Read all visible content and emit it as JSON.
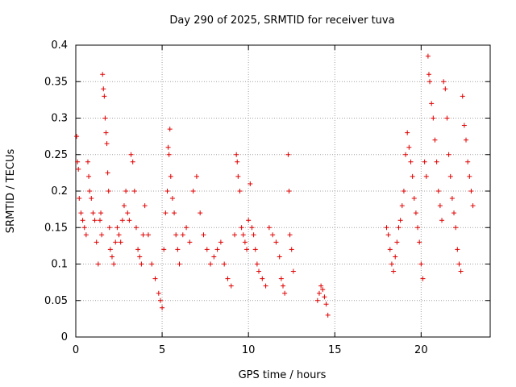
{
  "chart_data": {
    "type": "scatter",
    "title": "Day 290 of 2025, SRMTID for receiver tuva",
    "xlabel": "GPS time / hours",
    "ylabel": "SRMTID / TECUs",
    "xlim": [
      0,
      24
    ],
    "ylim": [
      0,
      0.4
    ],
    "x_ticks": [
      0,
      5,
      10,
      15,
      20
    ],
    "x_tick_labels": [
      "0",
      "5",
      "10",
      "15",
      "20"
    ],
    "y_ticks": [
      0,
      0.05,
      0.1,
      0.15,
      0.2,
      0.25,
      0.3,
      0.35,
      0.4
    ],
    "y_tick_labels": [
      "0",
      "0.05",
      "0.1",
      "0.15",
      "0.2",
      "0.25",
      "0.3",
      "0.35",
      "0.4"
    ],
    "grid": true,
    "marker": "+",
    "series_color": "#e00000",
    "series": [
      {
        "name": "SRMTID",
        "points": [
          [
            0.05,
            0.275
          ],
          [
            0.1,
            0.24
          ],
          [
            0.15,
            0.23
          ],
          [
            0.2,
            0.19
          ],
          [
            0.3,
            0.17
          ],
          [
            0.4,
            0.16
          ],
          [
            0.5,
            0.15
          ],
          [
            0.6,
            0.14
          ],
          [
            0.7,
            0.24
          ],
          [
            0.75,
            0.22
          ],
          [
            0.8,
            0.2
          ],
          [
            0.9,
            0.19
          ],
          [
            1.0,
            0.17
          ],
          [
            1.1,
            0.16
          ],
          [
            1.2,
            0.13
          ],
          [
            1.3,
            0.1
          ],
          [
            1.4,
            0.16
          ],
          [
            1.45,
            0.17
          ],
          [
            1.5,
            0.14
          ],
          [
            1.55,
            0.36
          ],
          [
            1.6,
            0.34
          ],
          [
            1.65,
            0.33
          ],
          [
            1.7,
            0.3
          ],
          [
            1.75,
            0.28
          ],
          [
            1.8,
            0.265
          ],
          [
            1.85,
            0.225
          ],
          [
            1.9,
            0.2
          ],
          [
            1.95,
            0.15
          ],
          [
            2.0,
            0.12
          ],
          [
            2.1,
            0.11
          ],
          [
            2.2,
            0.1
          ],
          [
            2.3,
            0.13
          ],
          [
            2.4,
            0.15
          ],
          [
            2.5,
            0.14
          ],
          [
            2.6,
            0.13
          ],
          [
            2.7,
            0.16
          ],
          [
            2.8,
            0.18
          ],
          [
            2.9,
            0.2
          ],
          [
            3.0,
            0.17
          ],
          [
            3.1,
            0.16
          ],
          [
            3.2,
            0.25
          ],
          [
            3.3,
            0.24
          ],
          [
            3.4,
            0.2
          ],
          [
            3.5,
            0.15
          ],
          [
            3.6,
            0.12
          ],
          [
            3.7,
            0.11
          ],
          [
            3.8,
            0.1
          ],
          [
            3.9,
            0.14
          ],
          [
            4.0,
            0.18
          ],
          [
            4.2,
            0.14
          ],
          [
            4.4,
            0.1
          ],
          [
            4.6,
            0.08
          ],
          [
            4.8,
            0.06
          ],
          [
            4.9,
            0.05
          ],
          [
            5.0,
            0.04
          ],
          [
            5.1,
            0.12
          ],
          [
            5.2,
            0.17
          ],
          [
            5.3,
            0.2
          ],
          [
            5.35,
            0.26
          ],
          [
            5.4,
            0.25
          ],
          [
            5.45,
            0.285
          ],
          [
            5.5,
            0.22
          ],
          [
            5.6,
            0.19
          ],
          [
            5.7,
            0.17
          ],
          [
            5.8,
            0.14
          ],
          [
            5.9,
            0.12
          ],
          [
            6.0,
            0.1
          ],
          [
            6.2,
            0.14
          ],
          [
            6.4,
            0.15
          ],
          [
            6.6,
            0.13
          ],
          [
            6.8,
            0.2
          ],
          [
            7.0,
            0.22
          ],
          [
            7.2,
            0.17
          ],
          [
            7.4,
            0.14
          ],
          [
            7.6,
            0.12
          ],
          [
            7.8,
            0.1
          ],
          [
            8.0,
            0.11
          ],
          [
            8.2,
            0.12
          ],
          [
            8.4,
            0.13
          ],
          [
            8.6,
            0.1
          ],
          [
            8.8,
            0.08
          ],
          [
            9.0,
            0.07
          ],
          [
            9.2,
            0.14
          ],
          [
            9.3,
            0.25
          ],
          [
            9.35,
            0.24
          ],
          [
            9.4,
            0.22
          ],
          [
            9.5,
            0.2
          ],
          [
            9.6,
            0.15
          ],
          [
            9.7,
            0.14
          ],
          [
            9.8,
            0.13
          ],
          [
            9.9,
            0.12
          ],
          [
            10.0,
            0.16
          ],
          [
            10.1,
            0.21
          ],
          [
            10.2,
            0.15
          ],
          [
            10.3,
            0.14
          ],
          [
            10.4,
            0.12
          ],
          [
            10.5,
            0.1
          ],
          [
            10.6,
            0.09
          ],
          [
            10.8,
            0.08
          ],
          [
            11.0,
            0.07
          ],
          [
            11.2,
            0.15
          ],
          [
            11.4,
            0.14
          ],
          [
            11.6,
            0.13
          ],
          [
            11.8,
            0.11
          ],
          [
            11.9,
            0.08
          ],
          [
            12.0,
            0.07
          ],
          [
            12.1,
            0.06
          ],
          [
            12.3,
            0.25
          ],
          [
            12.35,
            0.2
          ],
          [
            12.4,
            0.14
          ],
          [
            12.5,
            0.12
          ],
          [
            12.6,
            0.09
          ],
          [
            14.0,
            0.05
          ],
          [
            14.1,
            0.06
          ],
          [
            14.2,
            0.07
          ],
          [
            14.3,
            0.065
          ],
          [
            14.4,
            0.055
          ],
          [
            14.5,
            0.045
          ],
          [
            14.6,
            0.03
          ],
          [
            18.0,
            0.15
          ],
          [
            18.1,
            0.14
          ],
          [
            18.2,
            0.12
          ],
          [
            18.3,
            0.1
          ],
          [
            18.4,
            0.09
          ],
          [
            18.5,
            0.11
          ],
          [
            18.6,
            0.13
          ],
          [
            18.7,
            0.15
          ],
          [
            18.8,
            0.16
          ],
          [
            18.9,
            0.18
          ],
          [
            19.0,
            0.2
          ],
          [
            19.1,
            0.25
          ],
          [
            19.2,
            0.28
          ],
          [
            19.3,
            0.26
          ],
          [
            19.4,
            0.24
          ],
          [
            19.5,
            0.22
          ],
          [
            19.6,
            0.19
          ],
          [
            19.7,
            0.17
          ],
          [
            19.8,
            0.15
          ],
          [
            19.9,
            0.13
          ],
          [
            20.0,
            0.1
          ],
          [
            20.1,
            0.08
          ],
          [
            20.2,
            0.24
          ],
          [
            20.3,
            0.22
          ],
          [
            20.4,
            0.385
          ],
          [
            20.45,
            0.36
          ],
          [
            20.5,
            0.35
          ],
          [
            20.6,
            0.32
          ],
          [
            20.7,
            0.3
          ],
          [
            20.8,
            0.27
          ],
          [
            20.9,
            0.24
          ],
          [
            21.0,
            0.2
          ],
          [
            21.1,
            0.18
          ],
          [
            21.2,
            0.16
          ],
          [
            21.3,
            0.35
          ],
          [
            21.4,
            0.34
          ],
          [
            21.5,
            0.3
          ],
          [
            21.6,
            0.25
          ],
          [
            21.7,
            0.22
          ],
          [
            21.8,
            0.19
          ],
          [
            21.9,
            0.17
          ],
          [
            22.0,
            0.15
          ],
          [
            22.1,
            0.12
          ],
          [
            22.2,
            0.1
          ],
          [
            22.3,
            0.09
          ],
          [
            22.4,
            0.33
          ],
          [
            22.5,
            0.29
          ],
          [
            22.6,
            0.27
          ],
          [
            22.7,
            0.24
          ],
          [
            22.8,
            0.22
          ],
          [
            22.9,
            0.2
          ],
          [
            23.0,
            0.18
          ]
        ]
      }
    ]
  }
}
